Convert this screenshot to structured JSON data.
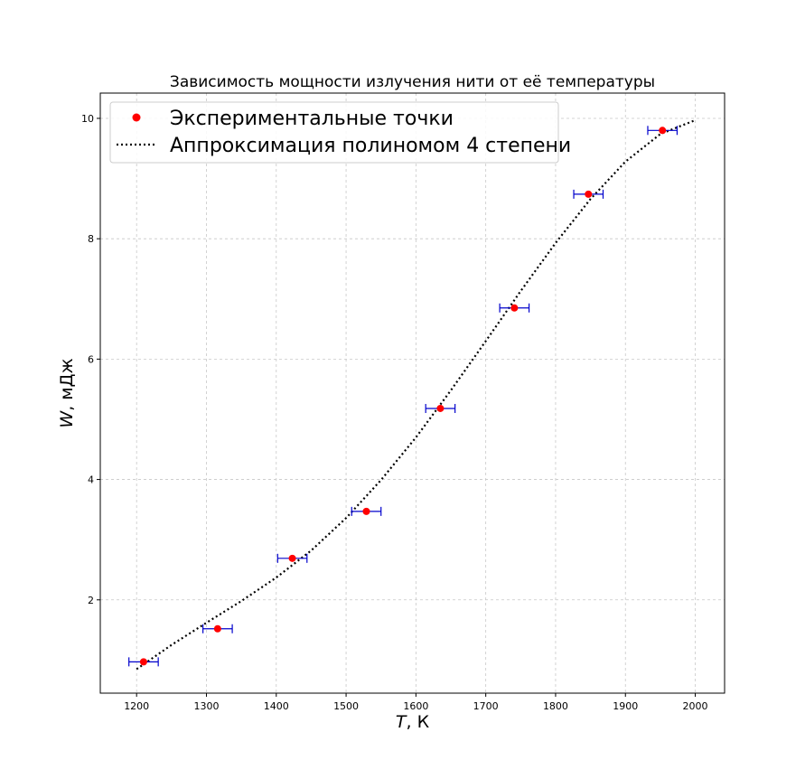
{
  "chart_data": {
    "type": "scatter",
    "title": "Зависимость мощности излучения нити от её температуры",
    "xlabel_var": "T",
    "xlabel_unit": ", К",
    "ylabel_var": "W",
    "ylabel_unit": ", мДж",
    "xlim": [
      1148,
      2042
    ],
    "ylim": [
      0.45,
      10.42
    ],
    "x_ticks": [
      1200,
      1300,
      1400,
      1500,
      1600,
      1700,
      1800,
      1900,
      2000
    ],
    "y_ticks": [
      2,
      4,
      6,
      8,
      10
    ],
    "grid": true,
    "legend_position": "top-left",
    "legend": [
      "Экспериментальные точки",
      "Аппроксимация полиномом 4 степени"
    ],
    "series": [
      {
        "name": "Экспериментальные точки",
        "kind": "points_with_xerr",
        "x": [
          1210,
          1316,
          1423,
          1529,
          1635,
          1741,
          1847,
          1953
        ],
        "y": [
          0.97,
          1.52,
          2.69,
          3.47,
          5.18,
          6.85,
          8.74,
          9.8
        ],
        "xerr": [
          21,
          21,
          21,
          21,
          21,
          21,
          21,
          21
        ]
      },
      {
        "name": "Аппроксимация полиномом 4 степени",
        "kind": "polyline",
        "x": [
          1200,
          1250,
          1300,
          1350,
          1400,
          1450,
          1500,
          1550,
          1600,
          1650,
          1700,
          1750,
          1800,
          1850,
          1900,
          1950,
          2000
        ],
        "y": [
          0.85,
          1.25,
          1.62,
          1.98,
          2.37,
          2.82,
          3.36,
          3.99,
          4.7,
          5.48,
          6.3,
          7.13,
          7.93,
          8.66,
          9.28,
          9.74,
          9.97
        ]
      }
    ],
    "colors": {
      "points": "#ff0000",
      "error_bars": "#0000cc",
      "fit_line": "#000000",
      "grid": "#c8c8c8"
    }
  }
}
